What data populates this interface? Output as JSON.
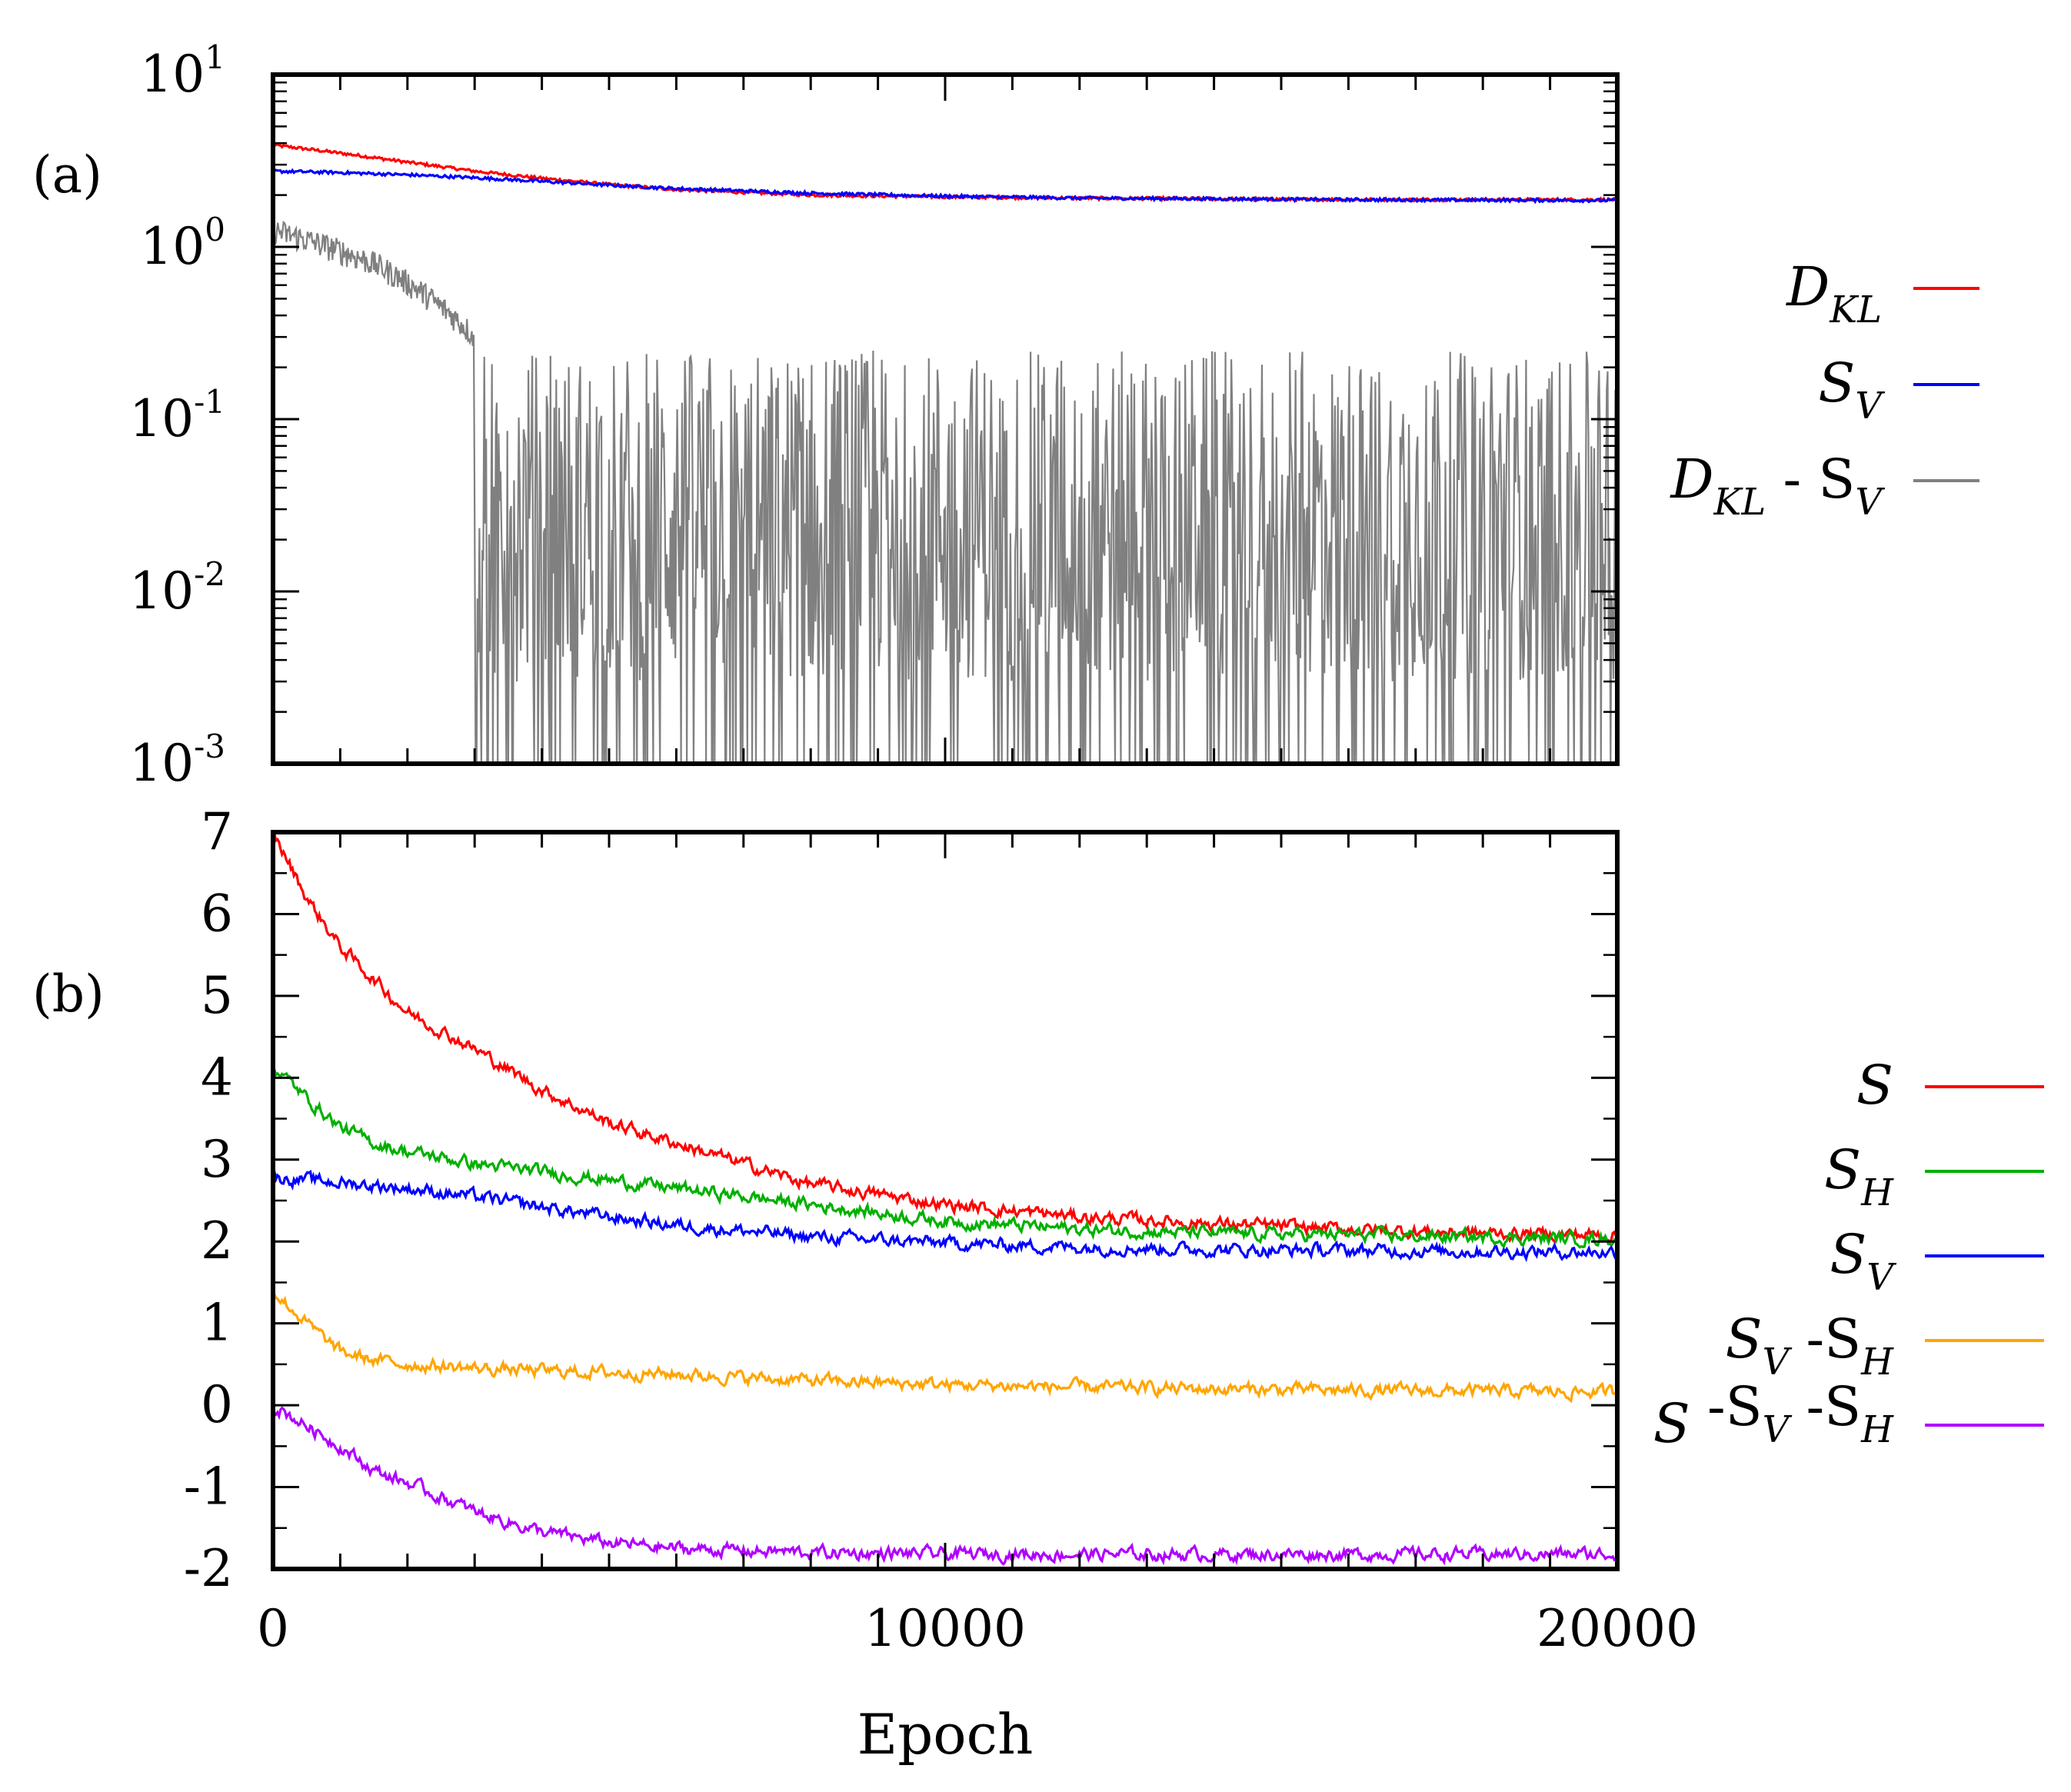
{
  "chart_data": [
    {
      "panel_label": "(a)",
      "type": "line",
      "y_scale": "log",
      "xlim": [
        0,
        20000
      ],
      "ylim": [
        0.001,
        10
      ],
      "y_ticks": [
        {
          "value": 10,
          "base": "10",
          "exponent": "1"
        },
        {
          "value": 1,
          "base": "10",
          "exponent": "0"
        },
        {
          "value": 0.1,
          "base": "10",
          "exponent": "-1"
        },
        {
          "value": 0.01,
          "base": "10",
          "exponent": "-2"
        },
        {
          "value": 0.001,
          "base": "10",
          "exponent": "-3"
        }
      ],
      "legend_position": "right",
      "series": [
        {
          "key": "dkl",
          "legend": [
            [
              "D",
              ""
            ],
            [
              "KL",
              "sub"
            ]
          ],
          "color": "#ff0000",
          "x": [
            0,
            1000,
            2000,
            3000,
            4000,
            5000,
            6000,
            8000,
            10000,
            12000,
            14000,
            16000,
            18000,
            20000
          ],
          "y": [
            3.9,
            3.5,
            3.1,
            2.75,
            2.5,
            2.3,
            2.15,
            2.0,
            1.95,
            1.92,
            1.9,
            1.88,
            1.88,
            1.88
          ]
        },
        {
          "key": "sv",
          "legend": [
            [
              "S",
              ""
            ],
            [
              "V",
              "sub"
            ]
          ],
          "color": "#0000ff",
          "x": [
            0,
            1000,
            2000,
            3000,
            4000,
            5000,
            6000,
            8000,
            10000,
            12000,
            14000,
            16000,
            18000,
            20000
          ],
          "y": [
            2.75,
            2.7,
            2.62,
            2.52,
            2.4,
            2.28,
            2.18,
            2.05,
            1.97,
            1.92,
            1.9,
            1.88,
            1.87,
            1.86
          ]
        },
        {
          "key": "diff",
          "legend": [
            [
              "D",
              ""
            ],
            [
              "KL",
              "sub"
            ],
            [
              " - S",
              "op"
            ],
            [
              "V",
              "sub"
            ]
          ],
          "color": "#808080",
          "x": [
            0,
            500,
            1000,
            1500,
            2000,
            2500,
            3000,
            3300,
            3600,
            3900,
            4200,
            4500,
            5000,
            6000,
            8000,
            10000,
            12000,
            14000,
            16000,
            18000,
            20000
          ],
          "y": [
            1.25,
            1.1,
            0.95,
            0.8,
            0.62,
            0.45,
            0.3,
            0.22,
            0.15,
            0.1,
            0.06,
            0.035,
            0.025,
            0.02,
            0.02,
            0.02,
            0.02,
            0.02,
            0.02,
            0.02,
            0.02
          ],
          "noisy": true
        }
      ]
    },
    {
      "panel_label": "(b)",
      "type": "line",
      "y_scale": "linear",
      "xlim": [
        0,
        20000
      ],
      "ylim": [
        -2,
        7
      ],
      "y_ticks": [
        7,
        6,
        5,
        4,
        3,
        2,
        1,
        0,
        -1,
        -2
      ],
      "x_ticks": [
        "0",
        "10000",
        "20000"
      ],
      "xlabel": "Epoch",
      "legend_position": "right",
      "series": [
        {
          "key": "s",
          "legend": [
            [
              "S",
              ""
            ]
          ],
          "color": "#ff0000",
          "x": [
            0,
            500,
            1000,
            1500,
            2000,
            3000,
            4000,
            5000,
            6000,
            8000,
            10000,
            12000,
            14000,
            16000,
            18000,
            20000
          ],
          "y": [
            7.0,
            6.2,
            5.6,
            5.2,
            4.8,
            4.35,
            3.85,
            3.45,
            3.2,
            2.7,
            2.45,
            2.3,
            2.22,
            2.15,
            2.1,
            2.08
          ]
        },
        {
          "key": "sh",
          "legend": [
            [
              "S",
              ""
            ],
            [
              "H",
              "sub"
            ]
          ],
          "color": "#00b000",
          "x": [
            0,
            500,
            1000,
            1500,
            2000,
            3000,
            4000,
            5000,
            6000,
            8000,
            10000,
            12000,
            14000,
            16000,
            18000,
            20000
          ],
          "y": [
            4.15,
            3.75,
            3.4,
            3.2,
            3.1,
            2.95,
            2.85,
            2.75,
            2.65,
            2.45,
            2.25,
            2.15,
            2.1,
            2.08,
            2.05,
            2.03
          ]
        },
        {
          "key": "sv",
          "legend": [
            [
              "S",
              ""
            ],
            [
              "V",
              "sub"
            ]
          ],
          "color": "#0000ff",
          "x": [
            0,
            1000,
            2000,
            3000,
            4000,
            5000,
            6000,
            8000,
            10000,
            12000,
            14000,
            16000,
            18000,
            20000
          ],
          "y": [
            2.78,
            2.72,
            2.65,
            2.55,
            2.42,
            2.3,
            2.2,
            2.06,
            1.98,
            1.93,
            1.9,
            1.89,
            1.88,
            1.87
          ]
        },
        {
          "key": "svsh",
          "legend": [
            [
              "S",
              ""
            ],
            [
              "V",
              "sub"
            ],
            [
              " -S",
              "op"
            ],
            [
              "H",
              "sub"
            ]
          ],
          "color": "#ffa500",
          "x": [
            0,
            500,
            1000,
            1500,
            2000,
            3000,
            4000,
            5000,
            6000,
            8000,
            10000,
            12000,
            14000,
            16000,
            18000,
            20000
          ],
          "y": [
            1.4,
            1.0,
            0.65,
            0.55,
            0.5,
            0.45,
            0.42,
            0.4,
            0.38,
            0.3,
            0.25,
            0.22,
            0.2,
            0.18,
            0.17,
            0.16
          ]
        },
        {
          "key": "ssvsh",
          "legend": [
            [
              "S",
              ""
            ],
            [
              " -S",
              "op"
            ],
            [
              "V",
              "sub"
            ],
            [
              " -S",
              "op"
            ],
            [
              "H",
              "sub"
            ]
          ],
          "color": "#b000ff",
          "x": [
            0,
            500,
            1000,
            1500,
            2000,
            3000,
            4000,
            5000,
            6000,
            8000,
            10000,
            12000,
            14000,
            16000,
            18000,
            20000
          ],
          "y": [
            0.0,
            -0.25,
            -0.5,
            -0.8,
            -0.95,
            -1.3,
            -1.55,
            -1.68,
            -1.75,
            -1.8,
            -1.82,
            -1.82,
            -1.82,
            -1.82,
            -1.82,
            -1.82
          ]
        }
      ]
    }
  ]
}
